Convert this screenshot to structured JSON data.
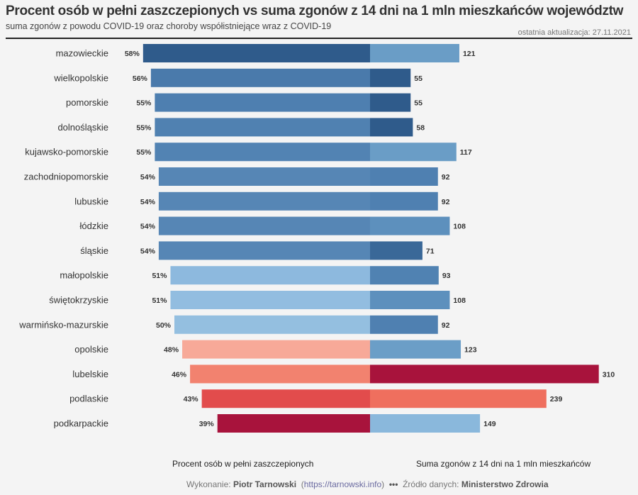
{
  "header": {
    "title": "Procent osób w pełni zaszczepionych vs suma zgonów z 14 dni na 1 mln mieszkańców województw",
    "subtitle": "suma zgonów z powodu COVID-19 oraz choroby współistniejące wraz z COVID-19",
    "updated": "ostatnia aktualizacja: 27.11.2021"
  },
  "footer": {
    "author_label": "Wykonanie:",
    "author": "Piotr Tarnowski",
    "link": "https://tarnowski.info",
    "separator": "•••",
    "source_label": "Źródło danych:",
    "source": "Ministerstwo Zdrowia"
  },
  "chart_data": {
    "type": "bar",
    "orientation": "horizontal-diverging",
    "categories": [
      "mazowieckie",
      "wielkopolskie",
      "pomorskie",
      "dolnośląskie",
      "kujawsko-pomorskie",
      "zachodniopomorskie",
      "lubuskie",
      "łódzkie",
      "śląskie",
      "małopolskie",
      "świętokrzyskie",
      "warmińsko-mazurskie",
      "opolskie",
      "lubelskie",
      "podlaskie",
      "podkarpackie"
    ],
    "series": [
      {
        "name": "Procent osób w pełni zaszczepionych",
        "values": [
          58,
          56,
          55,
          55,
          55,
          54,
          54,
          54,
          54,
          51,
          51,
          50,
          48,
          46,
          43,
          39
        ],
        "suffix": "%",
        "colors": [
          "#2f5b8b",
          "#4a7aab",
          "#4e7fb0",
          "#5081b1",
          "#5283b3",
          "#5686b5",
          "#5686b5",
          "#5686b5",
          "#5686b5",
          "#8db9de",
          "#92bde0",
          "#94bfe0",
          "#f7a998",
          "#f2826f",
          "#e24c4c",
          "#a8133c"
        ]
      },
      {
        "name": "Suma zgonów z 14 dni na 1 mln mieszkańców",
        "values": [
          121,
          55,
          55,
          58,
          117,
          92,
          92,
          108,
          71,
          93,
          108,
          92,
          123,
          310,
          239,
          149
        ],
        "suffix": "",
        "colors": [
          "#6a9dc6",
          "#2f5b8b",
          "#2f5b8b",
          "#2f5b8b",
          "#6a9dc6",
          "#4f80b1",
          "#4f80b1",
          "#5d90bd",
          "#3a6898",
          "#5082b2",
          "#5d90bd",
          "#4f80b1",
          "#6b9ec7",
          "#a8133c",
          "#ef6f5e",
          "#8ab8dc"
        ]
      }
    ],
    "xlim_left": [
      0,
      58
    ],
    "xlim_right": [
      0,
      310
    ],
    "grid": false
  }
}
